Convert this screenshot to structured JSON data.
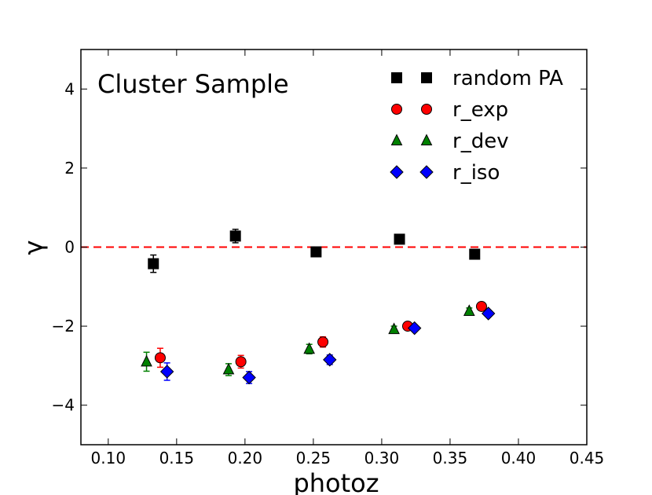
{
  "chart_data": {
    "type": "scatter",
    "title": "",
    "annotation": "Cluster Sample",
    "xlabel": "photoz",
    "ylabel": "γ",
    "xlim": [
      0.08,
      0.45
    ],
    "ylim": [
      -5,
      5
    ],
    "xticks": [
      "0.10",
      "0.15",
      "0.20",
      "0.25",
      "0.30",
      "0.35",
      "0.40",
      "0.45"
    ],
    "yticks": [
      "−4",
      "−2",
      "0",
      "2",
      "4"
    ],
    "xtick_values": [
      0.1,
      0.15,
      0.2,
      0.25,
      0.3,
      0.35,
      0.4,
      0.45
    ],
    "ytick_values": [
      -4,
      -2,
      0,
      2,
      4
    ],
    "reference_line": {
      "y": 0,
      "style": "dashed",
      "color": "#ff0000"
    },
    "legend_position": "top-right",
    "series": [
      {
        "name": "random PA",
        "marker": "square",
        "color": "#000000",
        "x": [
          0.133,
          0.193,
          0.252,
          0.313,
          0.368
        ],
        "y": [
          -0.42,
          0.28,
          -0.12,
          0.2,
          -0.18
        ],
        "yerr": [
          0.22,
          0.17,
          0.1,
          0.08,
          0.1
        ]
      },
      {
        "name": "r_exp",
        "marker": "circle",
        "color": "#ff0000",
        "x": [
          0.138,
          0.197,
          0.257,
          0.319,
          0.373
        ],
        "y": [
          -2.8,
          -2.9,
          -2.4,
          -2.0,
          -1.5
        ],
        "yerr": [
          0.24,
          0.16,
          0.13,
          0.1,
          0.08
        ]
      },
      {
        "name": "r_dev",
        "marker": "triangle",
        "color": "#008000",
        "x": [
          0.128,
          0.188,
          0.247,
          0.309,
          0.364
        ],
        "y": [
          -2.9,
          -3.1,
          -2.58,
          -2.08,
          -1.62
        ],
        "yerr": [
          0.24,
          0.15,
          0.12,
          0.08,
          0.08
        ]
      },
      {
        "name": "r_iso",
        "marker": "diamond",
        "color": "#0000ff",
        "x": [
          0.143,
          0.203,
          0.262,
          0.324,
          0.378
        ],
        "y": [
          -3.15,
          -3.3,
          -2.85,
          -2.05,
          -1.68
        ],
        "yerr": [
          0.22,
          0.15,
          0.12,
          0.08,
          0.07
        ]
      }
    ]
  }
}
